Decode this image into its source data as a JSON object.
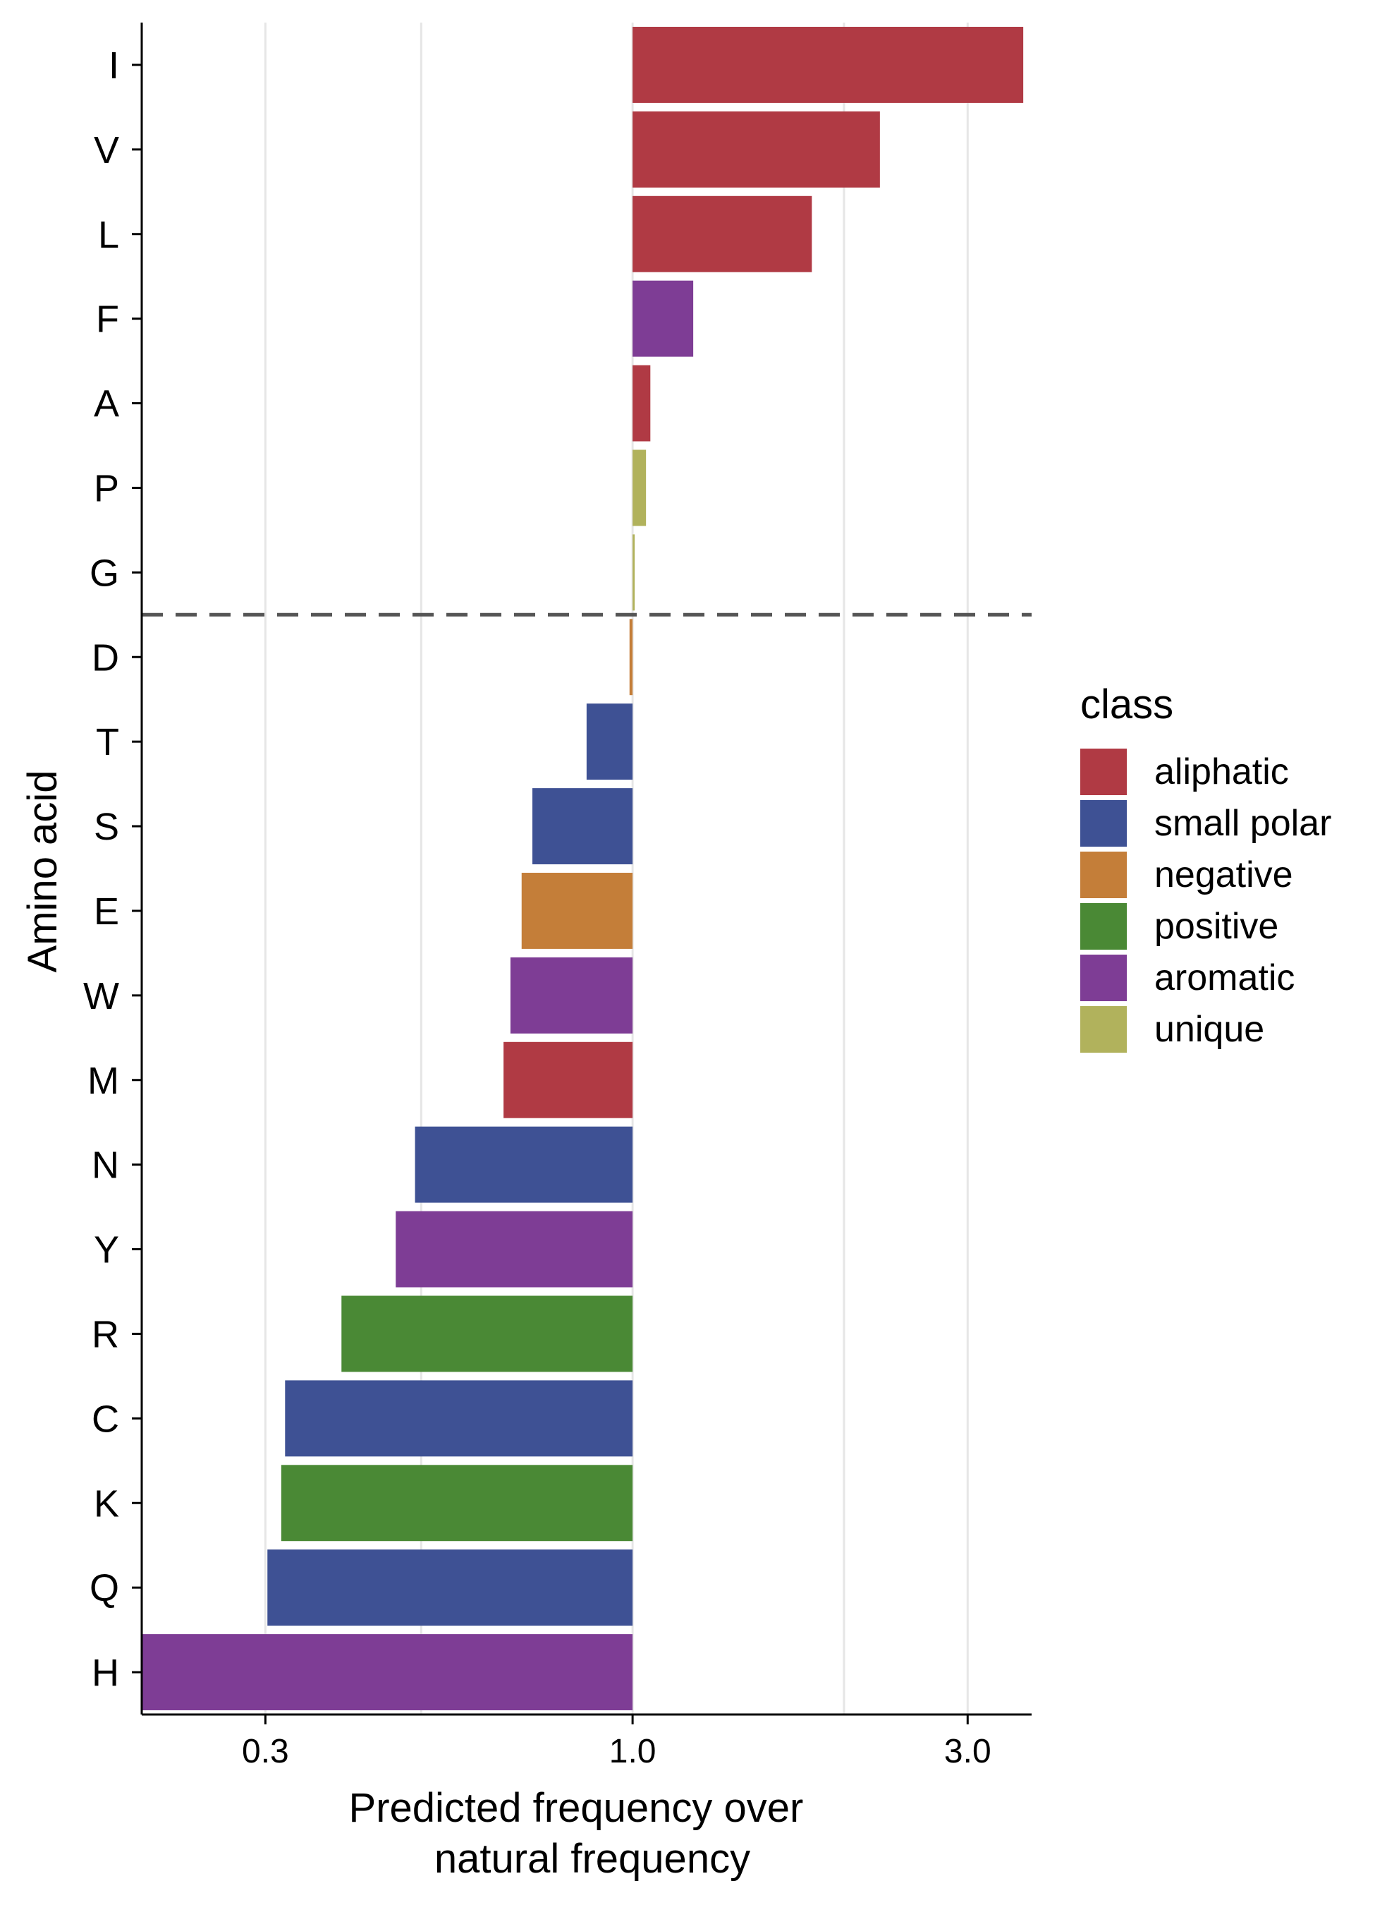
{
  "chart_data": {
    "type": "bar",
    "orientation": "horizontal",
    "xscale": "log",
    "baseline": 1.0,
    "xlim": [
      0.2,
      3.7
    ],
    "xticks": [
      0.3,
      1.0,
      3.0
    ],
    "xtick_labels": [
      "0.3",
      "1.0",
      "3.0"
    ],
    "minor_gridlines": [
      0.5,
      2.0
    ],
    "grid": "vertical",
    "xlabel_lines": [
      "Predicted frequency over",
      "natural frequency"
    ],
    "ylabel": "Amino acid",
    "divider_after": "G",
    "divider_style": "dashed",
    "legend_title": "class",
    "legend_position": "right",
    "classes": [
      {
        "name": "aliphatic",
        "color": "#B03A44"
      },
      {
        "name": "small polar",
        "color": "#3E5194"
      },
      {
        "name": "negative",
        "color": "#C47E39"
      },
      {
        "name": "positive",
        "color": "#4A8935"
      },
      {
        "name": "aromatic",
        "color": "#7E3D95"
      },
      {
        "name": "unique",
        "color": "#B1B25C"
      }
    ],
    "bars": [
      {
        "label": "I",
        "value": 3.6,
        "class": "aliphatic"
      },
      {
        "label": "V",
        "value": 2.25,
        "class": "aliphatic"
      },
      {
        "label": "L",
        "value": 1.8,
        "class": "aliphatic"
      },
      {
        "label": "F",
        "value": 1.22,
        "class": "aromatic"
      },
      {
        "label": "A",
        "value": 1.06,
        "class": "aliphatic"
      },
      {
        "label": "P",
        "value": 1.045,
        "class": "unique"
      },
      {
        "label": "G",
        "value": 1.003,
        "class": "unique"
      },
      {
        "label": "D",
        "value": 0.99,
        "class": "negative"
      },
      {
        "label": "T",
        "value": 0.86,
        "class": "small polar"
      },
      {
        "label": "S",
        "value": 0.72,
        "class": "small polar"
      },
      {
        "label": "E",
        "value": 0.695,
        "class": "negative"
      },
      {
        "label": "W",
        "value": 0.67,
        "class": "aromatic"
      },
      {
        "label": "M",
        "value": 0.655,
        "class": "aliphatic"
      },
      {
        "label": "N",
        "value": 0.49,
        "class": "small polar"
      },
      {
        "label": "Y",
        "value": 0.46,
        "class": "aromatic"
      },
      {
        "label": "R",
        "value": 0.385,
        "class": "positive"
      },
      {
        "label": "C",
        "value": 0.32,
        "class": "small polar"
      },
      {
        "label": "K",
        "value": 0.316,
        "class": "positive"
      },
      {
        "label": "Q",
        "value": 0.302,
        "class": "small polar"
      },
      {
        "label": "H",
        "value": 0.2,
        "class": "aromatic"
      }
    ]
  }
}
